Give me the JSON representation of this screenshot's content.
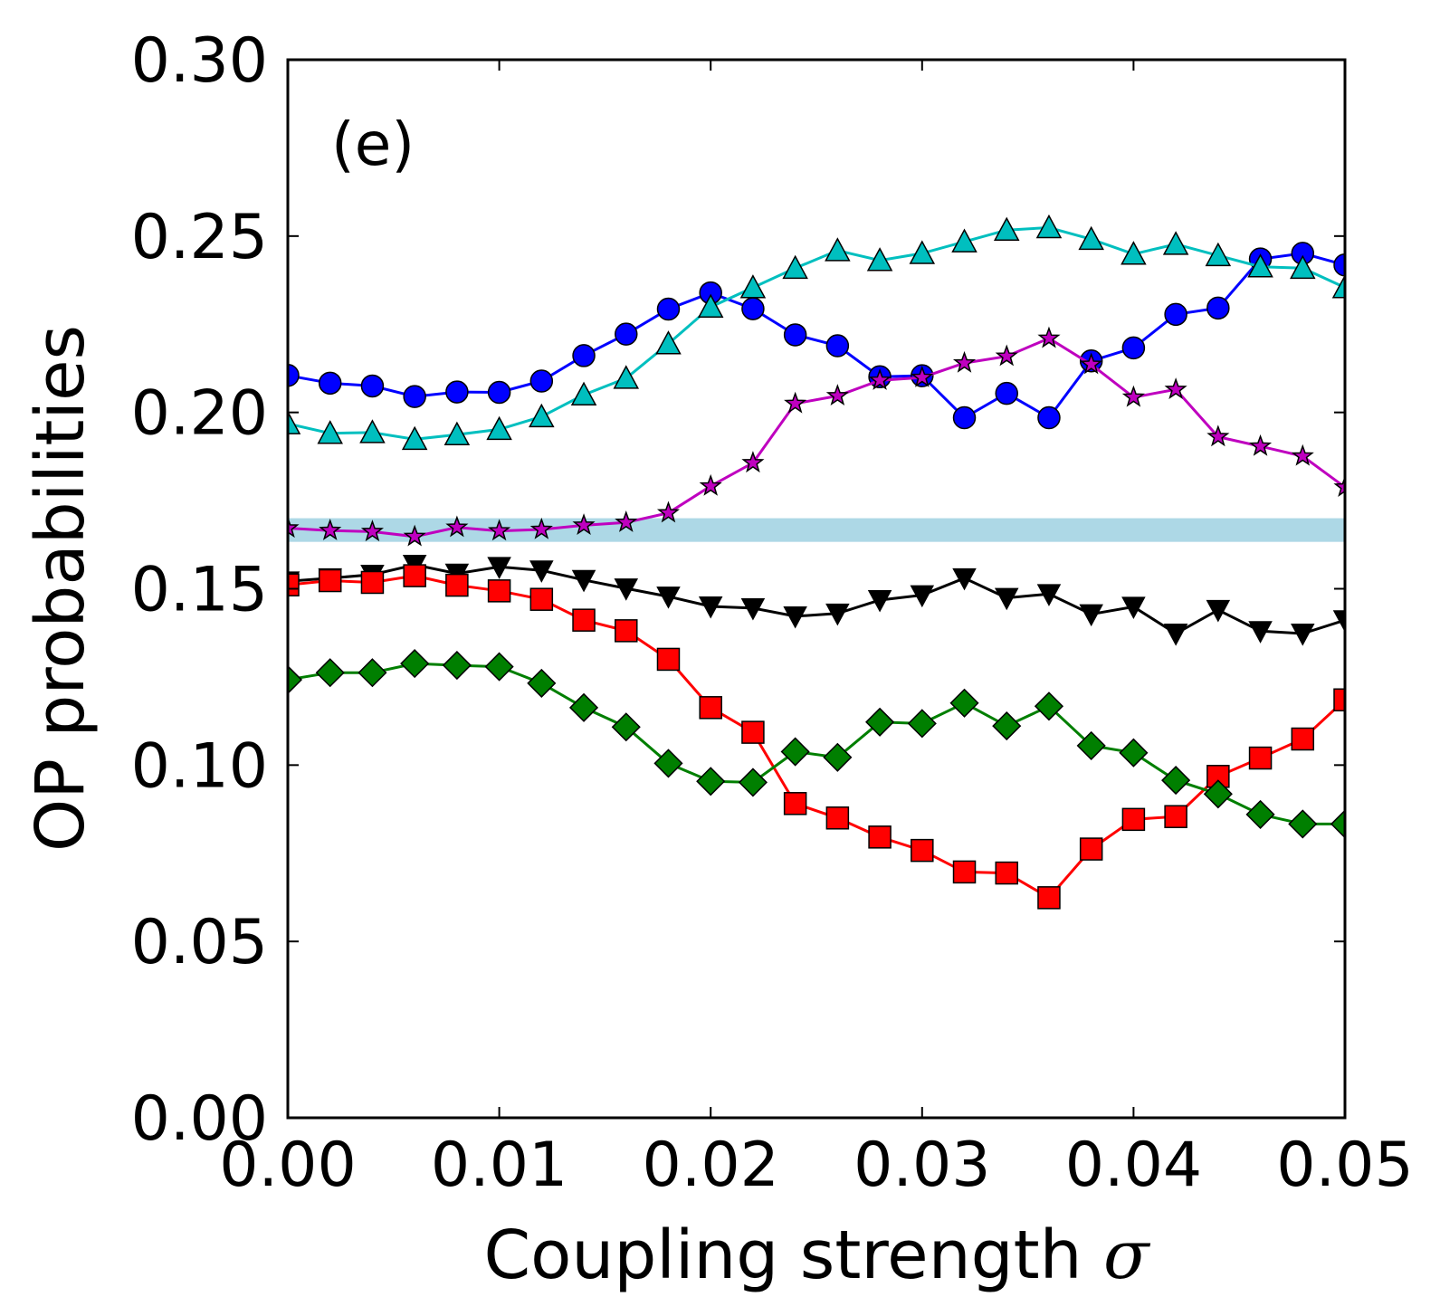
{
  "chart_data": {
    "type": "line",
    "panel_label": "(e)",
    "xlabel": "Coupling strength ",
    "xlabel_symbol": "σ",
    "ylabel": "OP probabilities",
    "xlim": [
      0,
      0.05
    ],
    "ylim": [
      0,
      0.3
    ],
    "xticks": [
      "0.00",
      "0.01",
      "0.02",
      "0.03",
      "0.04",
      "0.05"
    ],
    "yticks": [
      "0.00",
      "0.05",
      "0.10",
      "0.15",
      "0.20",
      "0.25",
      "0.30"
    ],
    "grid": false,
    "reference_band": {
      "y_low": 0.1633,
      "y_high": 0.17,
      "color": "#add8e6"
    },
    "x": [
      0,
      0.002,
      0.004,
      0.006,
      0.008,
      0.01,
      0.012,
      0.014,
      0.016,
      0.018,
      0.02,
      0.022,
      0.024,
      0.026,
      0.028,
      0.03,
      0.032,
      0.034,
      0.036,
      0.038,
      0.04,
      0.042,
      0.044,
      0.046,
      0.048,
      0.05
    ],
    "series": [
      {
        "color": "#0000ff",
        "marker": "circle",
        "values": [
          0.2105,
          0.2083,
          0.2075,
          0.2045,
          0.2058,
          0.2057,
          0.2089,
          0.2161,
          0.2222,
          0.2293,
          0.2339,
          0.2294,
          0.222,
          0.2189,
          0.2101,
          0.2104,
          0.1985,
          0.2054,
          0.1985,
          0.2146,
          0.2183,
          0.2278,
          0.2296,
          0.2435,
          0.2451,
          0.2418
        ]
      },
      {
        "color": "#00bfbf",
        "marker": "triangle-up",
        "values": [
          0.1968,
          0.1941,
          0.1943,
          0.1924,
          0.1937,
          0.1952,
          0.1988,
          0.205,
          0.2097,
          0.2195,
          0.2299,
          0.2354,
          0.2409,
          0.2459,
          0.2431,
          0.2451,
          0.2484,
          0.2517,
          0.2524,
          0.2491,
          0.2449,
          0.2477,
          0.2445,
          0.2413,
          0.2409,
          0.2354
        ]
      },
      {
        "color": "#bf00bf",
        "marker": "star",
        "values": [
          0.1672,
          0.1665,
          0.1662,
          0.1648,
          0.1674,
          0.1664,
          0.1668,
          0.168,
          0.1688,
          0.1715,
          0.1791,
          0.1857,
          0.2025,
          0.2047,
          0.2091,
          0.2099,
          0.214,
          0.2159,
          0.221,
          0.2136,
          0.2043,
          0.2065,
          0.1931,
          0.1904,
          0.1876,
          0.1788
        ]
      },
      {
        "color": "#000000",
        "marker": "triangle-down",
        "values": [
          0.1521,
          0.153,
          0.154,
          0.1568,
          0.1543,
          0.1562,
          0.1552,
          0.1525,
          0.1501,
          0.1478,
          0.145,
          0.1445,
          0.1422,
          0.143,
          0.1468,
          0.1482,
          0.153,
          0.1474,
          0.1485,
          0.1428,
          0.1449,
          0.1373,
          0.144,
          0.138,
          0.1373,
          0.1411
        ]
      },
      {
        "color": "#ff0000",
        "marker": "square",
        "values": [
          0.1511,
          0.1523,
          0.1518,
          0.1537,
          0.151,
          0.1494,
          0.147,
          0.1411,
          0.1381,
          0.13,
          0.1163,
          0.1093,
          0.0891,
          0.085,
          0.0796,
          0.0758,
          0.0697,
          0.0694,
          0.0624,
          0.0762,
          0.0846,
          0.0854,
          0.0968,
          0.102,
          0.1074,
          0.1185
        ]
      },
      {
        "color": "#007f00",
        "marker": "diamond",
        "values": [
          0.1242,
          0.1262,
          0.1262,
          0.1288,
          0.1283,
          0.1279,
          0.1232,
          0.1163,
          0.1108,
          0.1005,
          0.0954,
          0.0951,
          0.1038,
          0.1022,
          0.1122,
          0.1118,
          0.1176,
          0.1111,
          0.1167,
          0.1055,
          0.1035,
          0.0957,
          0.0918,
          0.086,
          0.0833,
          0.0833
        ]
      }
    ]
  }
}
